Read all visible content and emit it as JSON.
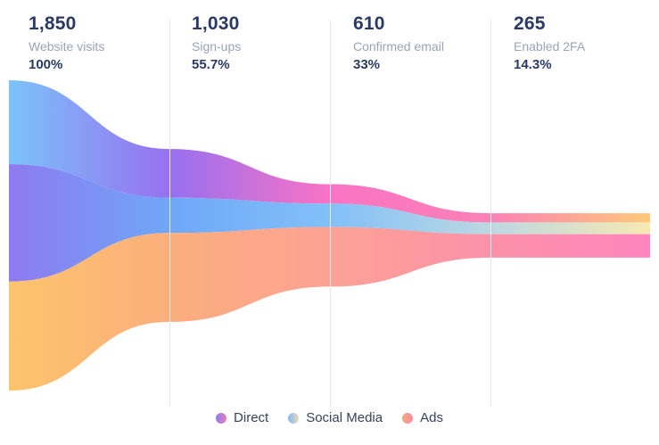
{
  "chart_data": {
    "type": "area",
    "variant": "horizontal-funnel",
    "title": "",
    "grid": false,
    "legend_position": "bottom-center",
    "stages": [
      {
        "value": "1,850",
        "label": "Website visits",
        "percent": "100%",
        "total": 1850
      },
      {
        "value": "1,030",
        "label": "Sign-ups",
        "percent": "55.7%",
        "total": 1030
      },
      {
        "value": "610",
        "label": "Confirmed email",
        "percent": "33%",
        "total": 610
      },
      {
        "value": "265",
        "label": "Enabled 2FA",
        "percent": "14.3%",
        "total": 265
      }
    ],
    "series": [
      {
        "name": "Direct",
        "values": [
          500,
          290,
          115,
          55
        ],
        "gradient": [
          "#7cc3f9",
          "#9770f0",
          "#fa73c5",
          "#fb81b5",
          "#fec979"
        ],
        "dot": [
          "#8a7cf0",
          "#f07ab8"
        ]
      },
      {
        "name": "Social Media",
        "values": [
          700,
          210,
          140,
          70
        ],
        "gradient": [
          "#8e7af1",
          "#6fa7f7",
          "#82c0f8",
          "#bcd8e2",
          "#f7e9b4"
        ],
        "dot": [
          "#85b6f5",
          "#ebdbb8"
        ]
      },
      {
        "name": "Ads",
        "values": [
          650,
          530,
          355,
          140
        ],
        "gradient": [
          "#fdc46c",
          "#fbae7c",
          "#fca295",
          "#fc91a9",
          "#fe85bd"
        ],
        "dot": [
          "#f8a876",
          "#f98ba8"
        ]
      }
    ],
    "colors": {
      "background": "#ffffff",
      "value_text": "#2b3a64",
      "sublabel_text": "#9aa3b8",
      "legend_text": "#39425c",
      "divider": "#e7e8ec"
    }
  }
}
